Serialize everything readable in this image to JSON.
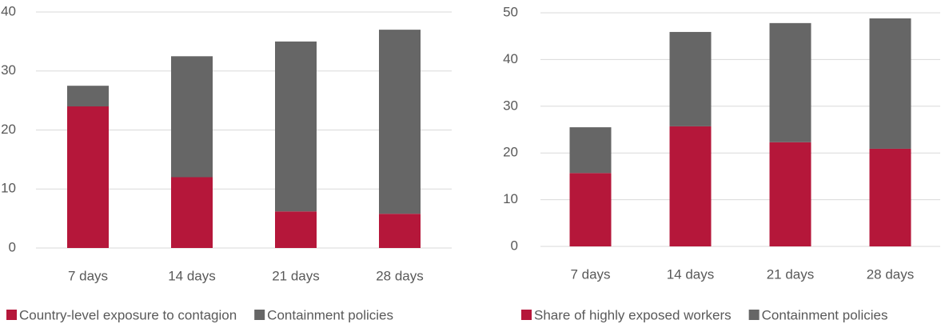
{
  "chart_data": [
    {
      "type": "bar",
      "stacked": true,
      "categories": [
        "7 days",
        "14 days",
        "21 days",
        "28 days"
      ],
      "series": [
        {
          "name": "Country-level exposure to contagion",
          "color": "#b5173a",
          "values": [
            24,
            12,
            6.2,
            5.8
          ]
        },
        {
          "name": "Containment policies",
          "color": "#666666",
          "values": [
            3.5,
            20.5,
            28.8,
            31.2
          ]
        }
      ],
      "ylim": [
        0,
        40
      ],
      "yticks": [
        0,
        10,
        20,
        30,
        40
      ],
      "grid": true,
      "legend": "bottom"
    },
    {
      "type": "bar",
      "stacked": true,
      "categories": [
        "7 days",
        "14 days",
        "21 days",
        "28 days"
      ],
      "series": [
        {
          "name": "Share of highly exposed workers",
          "color": "#b5173a",
          "values": [
            15.7,
            25.7,
            22.3,
            20.9
          ]
        },
        {
          "name": "Containment policies",
          "color": "#666666",
          "values": [
            9.8,
            20.2,
            25.5,
            27.9
          ]
        }
      ],
      "ylim": [
        0,
        50
      ],
      "yticks": [
        0,
        10,
        20,
        30,
        40,
        50
      ],
      "grid": true,
      "legend": "bottom"
    }
  ]
}
